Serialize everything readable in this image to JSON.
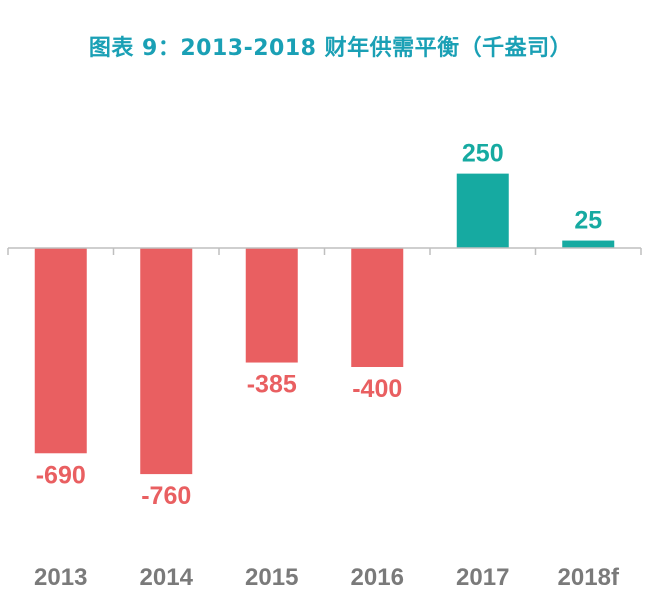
{
  "chart_data": {
    "type": "bar",
    "title": "图表 9：2013-2018 财年供需平衡（千盎司）",
    "xlabel": "",
    "ylabel": "",
    "categories": [
      "2013",
      "2014",
      "2015",
      "2016",
      "2017",
      "2018f"
    ],
    "values": [
      -690,
      -760,
      -385,
      -400,
      250,
      25
    ],
    "data_labels": [
      "-690",
      "-760",
      "-385",
      "-400",
      "250",
      "25"
    ],
    "ylim": [
      -800,
      350
    ],
    "grid": false,
    "legend": "none",
    "colors": {
      "negative": "#e95f61",
      "positive": "#16aaa1",
      "title": "#1aa0b5",
      "axis": "#bfbfbf",
      "tick_text": "#7a7a7a"
    }
  }
}
